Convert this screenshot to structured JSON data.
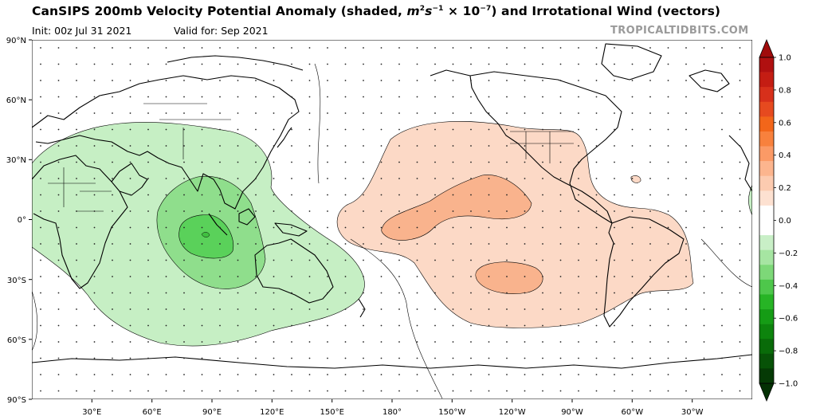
{
  "title": {
    "prefix": "CanSIPS 200mb Velocity Potential Anomaly (shaded, ",
    "unit_m": "m",
    "unit_m_exp": "2",
    "unit_s": "s",
    "unit_s_exp": "−1",
    "unit_x": " × 10",
    "unit_x_exp": "−7",
    "suffix": ") and Irrotational Wind (vectors)"
  },
  "init_text": "Init: 00z Jul 31 2021",
  "valid_text": "Valid for: Sep 2021",
  "brand": "TROPICALTIDBITS.COM",
  "colors": {
    "neg_light": "#c6efc4",
    "neg_mid": "#8fde8c",
    "neg_strong": "#5ad15a",
    "pos_light": "#fcd9c6",
    "pos_mid": "#f9b38d"
  },
  "map": {
    "lat_labels": [
      "90°N",
      "60°N",
      "30°N",
      "0°",
      "30°S",
      "60°S",
      "90°S"
    ],
    "lon_labels": [
      "30°E",
      "60°E",
      "90°E",
      "120°E",
      "150°E",
      "180°",
      "150°W",
      "120°W",
      "90°W",
      "60°W",
      "30°W"
    ]
  },
  "colorbar": {
    "labels": [
      "1.0",
      "0.8",
      "0.6",
      "0.4",
      "0.2",
      "0.0",
      "−0.2",
      "−0.4",
      "−0.6",
      "−0.8",
      "−1.0"
    ],
    "colors": [
      "#b01010",
      "#c41d13",
      "#d7301b",
      "#e64a1f",
      "#f2661a",
      "#f8813d",
      "#fb9a66",
      "#fcb58e",
      "#fccbb0",
      "#fde1d1",
      "#ffffff",
      "#ffffff",
      "#c9efc7",
      "#a6e5a2",
      "#7dd878",
      "#4ec74b",
      "#27b425",
      "#159c15",
      "#0d840d",
      "#096b09",
      "#075207",
      "#053a05"
    ],
    "top_cap_color": "#a00b0b",
    "bottom_cap_color": "#033003"
  }
}
